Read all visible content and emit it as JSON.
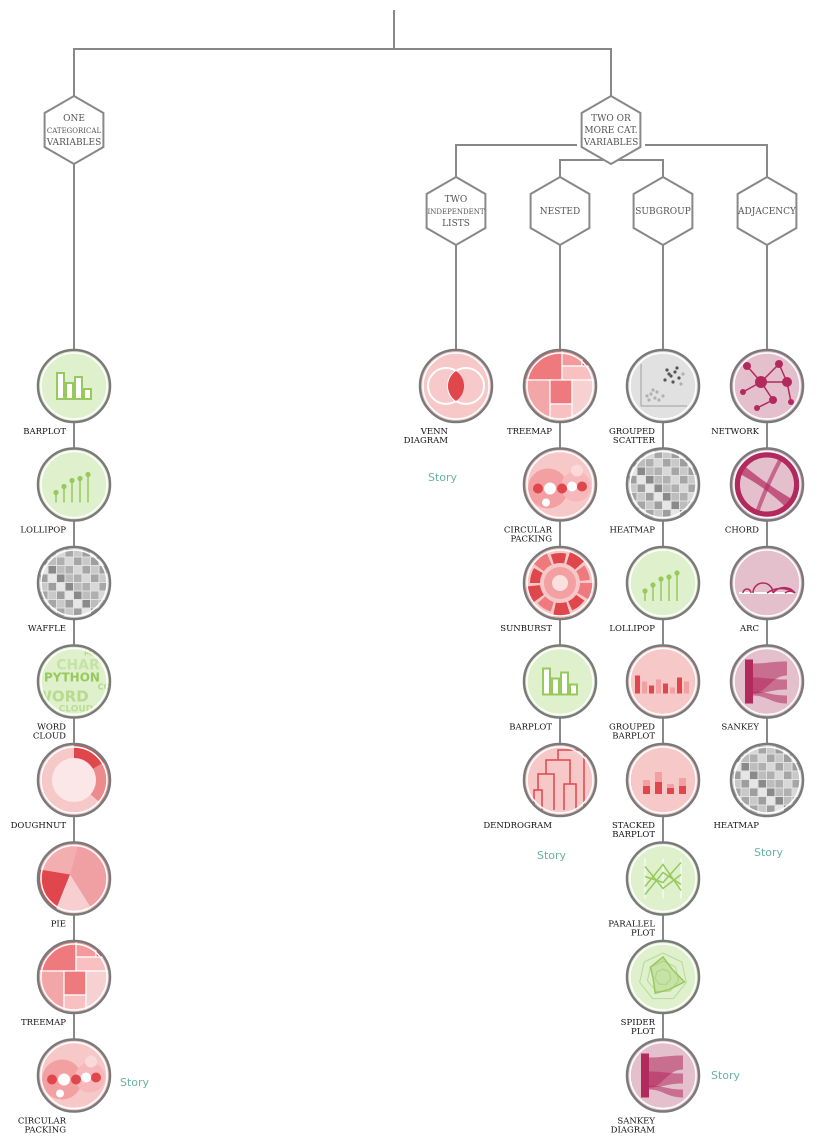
{
  "palette": {
    "line": "#888888",
    "hex_stroke": "#888888",
    "circle_stroke": "#7a7a7a",
    "story": "#69b3a2",
    "green_bg": "#dff0cd",
    "green": "#97c95c",
    "red_bg": "#f6c8c8",
    "red": "#e0474c",
    "grey_bg": "#e1e1e1",
    "grey": "#8c8c8c",
    "mauve_bg": "#e3c0cc",
    "mauve": "#b22a5d"
  },
  "categories": {
    "one": {
      "lines": [
        "ONE",
        "CATEGORICAL",
        "VARIABLES"
      ]
    },
    "two_more": {
      "lines": [
        "TWO OR",
        "MORE CAT.",
        "VARIABLES"
      ]
    },
    "independent": {
      "lines": [
        "TWO",
        "INDEPENDENT",
        "LISTS"
      ]
    },
    "nested": {
      "lines": [
        "NESTED"
      ]
    },
    "subgroup": {
      "lines": [
        "SUBGROUP"
      ]
    },
    "adjacency": {
      "lines": [
        "ADJACENCY"
      ]
    }
  },
  "columns": [
    {
      "id": "one",
      "charts": [
        {
          "label": [
            "BARPLOT"
          ],
          "icon": "barplot",
          "theme": "green"
        },
        {
          "label": [
            "LOLLIPOP"
          ],
          "icon": "lollipop",
          "theme": "green"
        },
        {
          "label": [
            "WAFFLE"
          ],
          "icon": "waffle",
          "theme": "grey"
        },
        {
          "label": [
            "WORD",
            "CLOUD"
          ],
          "icon": "wordcloud",
          "theme": "green",
          "words": [
            "CHAR",
            "PYTHON",
            "WORD",
            "CLOUD",
            "MAP",
            "CO"
          ]
        },
        {
          "label": [
            "DOUGHNUT"
          ],
          "icon": "doughnut",
          "theme": "red"
        },
        {
          "label": [
            "PIE"
          ],
          "icon": "pie",
          "theme": "red"
        },
        {
          "label": [
            "TREEMAP"
          ],
          "icon": "treemap",
          "theme": "red"
        },
        {
          "label": [
            "CIRCULAR",
            "PACKING"
          ],
          "icon": "packing",
          "theme": "red"
        }
      ],
      "story": "Story"
    },
    {
      "id": "independent",
      "charts": [
        {
          "label": [
            "VENN",
            "DIAGRAM"
          ],
          "icon": "venn",
          "theme": "red"
        }
      ],
      "story": "Story"
    },
    {
      "id": "nested",
      "charts": [
        {
          "label": [
            "TREEMAP"
          ],
          "icon": "treemap",
          "theme": "red"
        },
        {
          "label": [
            "CIRCULAR",
            "PACKING"
          ],
          "icon": "packing",
          "theme": "red"
        },
        {
          "label": [
            "SUNBURST"
          ],
          "icon": "sunburst",
          "theme": "red"
        },
        {
          "label": [
            "BARPLOT"
          ],
          "icon": "barplot",
          "theme": "green"
        },
        {
          "label": [
            "DENDROGRAM"
          ],
          "icon": "dendrogram",
          "theme": "red"
        }
      ],
      "story": "Story"
    },
    {
      "id": "subgroup",
      "charts": [
        {
          "label": [
            "GROUPED",
            "SCATTER"
          ],
          "icon": "scatter",
          "theme": "grey"
        },
        {
          "label": [
            "HEATMAP"
          ],
          "icon": "heatmap",
          "theme": "grey"
        },
        {
          "label": [
            "LOLLIPOP"
          ],
          "icon": "lollipop",
          "theme": "green"
        },
        {
          "label": [
            "GROUPED",
            "BARPLOT"
          ],
          "icon": "groupedbar",
          "theme": "red"
        },
        {
          "label": [
            "STACKED",
            "BARPLOT"
          ],
          "icon": "stackedbar",
          "theme": "red"
        },
        {
          "label": [
            "PARALLEL",
            "PLOT"
          ],
          "icon": "parallel",
          "theme": "green"
        },
        {
          "label": [
            "SPIDER",
            "PLOT"
          ],
          "icon": "spider",
          "theme": "green"
        },
        {
          "label": [
            "SANKEY",
            "DIAGRAM"
          ],
          "icon": "sankey",
          "theme": "mauve"
        }
      ],
      "story": "Story"
    },
    {
      "id": "adjacency",
      "charts": [
        {
          "label": [
            "NETWORK"
          ],
          "icon": "network",
          "theme": "mauve"
        },
        {
          "label": [
            "CHORD"
          ],
          "icon": "chord",
          "theme": "mauve"
        },
        {
          "label": [
            "ARC"
          ],
          "icon": "arc",
          "theme": "mauve"
        },
        {
          "label": [
            "SANKEY"
          ],
          "icon": "sankey",
          "theme": "mauve"
        },
        {
          "label": [
            "HEATMAP"
          ],
          "icon": "heatmap",
          "theme": "grey"
        }
      ],
      "story": "Story"
    }
  ]
}
